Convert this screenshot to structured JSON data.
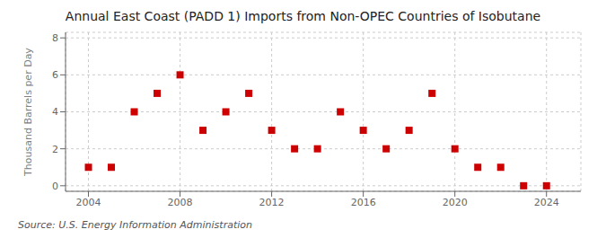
{
  "chart_data": {
    "type": "scatter",
    "title": "Annual East Coast (PADD 1) Imports from Non-OPEC Countries of Isobutane",
    "y_label": "Thousand Barrels per Day",
    "source": "Source: U.S. Energy Information Administration",
    "x": [
      2004,
      2005,
      2006,
      2007,
      2008,
      2009,
      2010,
      2011,
      2012,
      2013,
      2014,
      2015,
      2016,
      2017,
      2018,
      2019,
      2020,
      2021,
      2022,
      2023,
      2024
    ],
    "values": [
      1,
      1,
      4,
      5,
      6,
      3,
      4,
      5,
      3,
      2,
      2,
      4,
      3,
      2,
      3,
      5,
      2,
      1,
      1,
      0,
      0
    ],
    "color": "#cc0000",
    "marker": "square",
    "xlim": [
      2003.0,
      2025.5
    ],
    "ylim": [
      -0.3,
      8.3
    ],
    "xticks": [
      2004,
      2008,
      2012,
      2016,
      2020,
      2024
    ],
    "yticks": [
      0,
      2,
      4,
      6,
      8
    ],
    "grid": true
  }
}
